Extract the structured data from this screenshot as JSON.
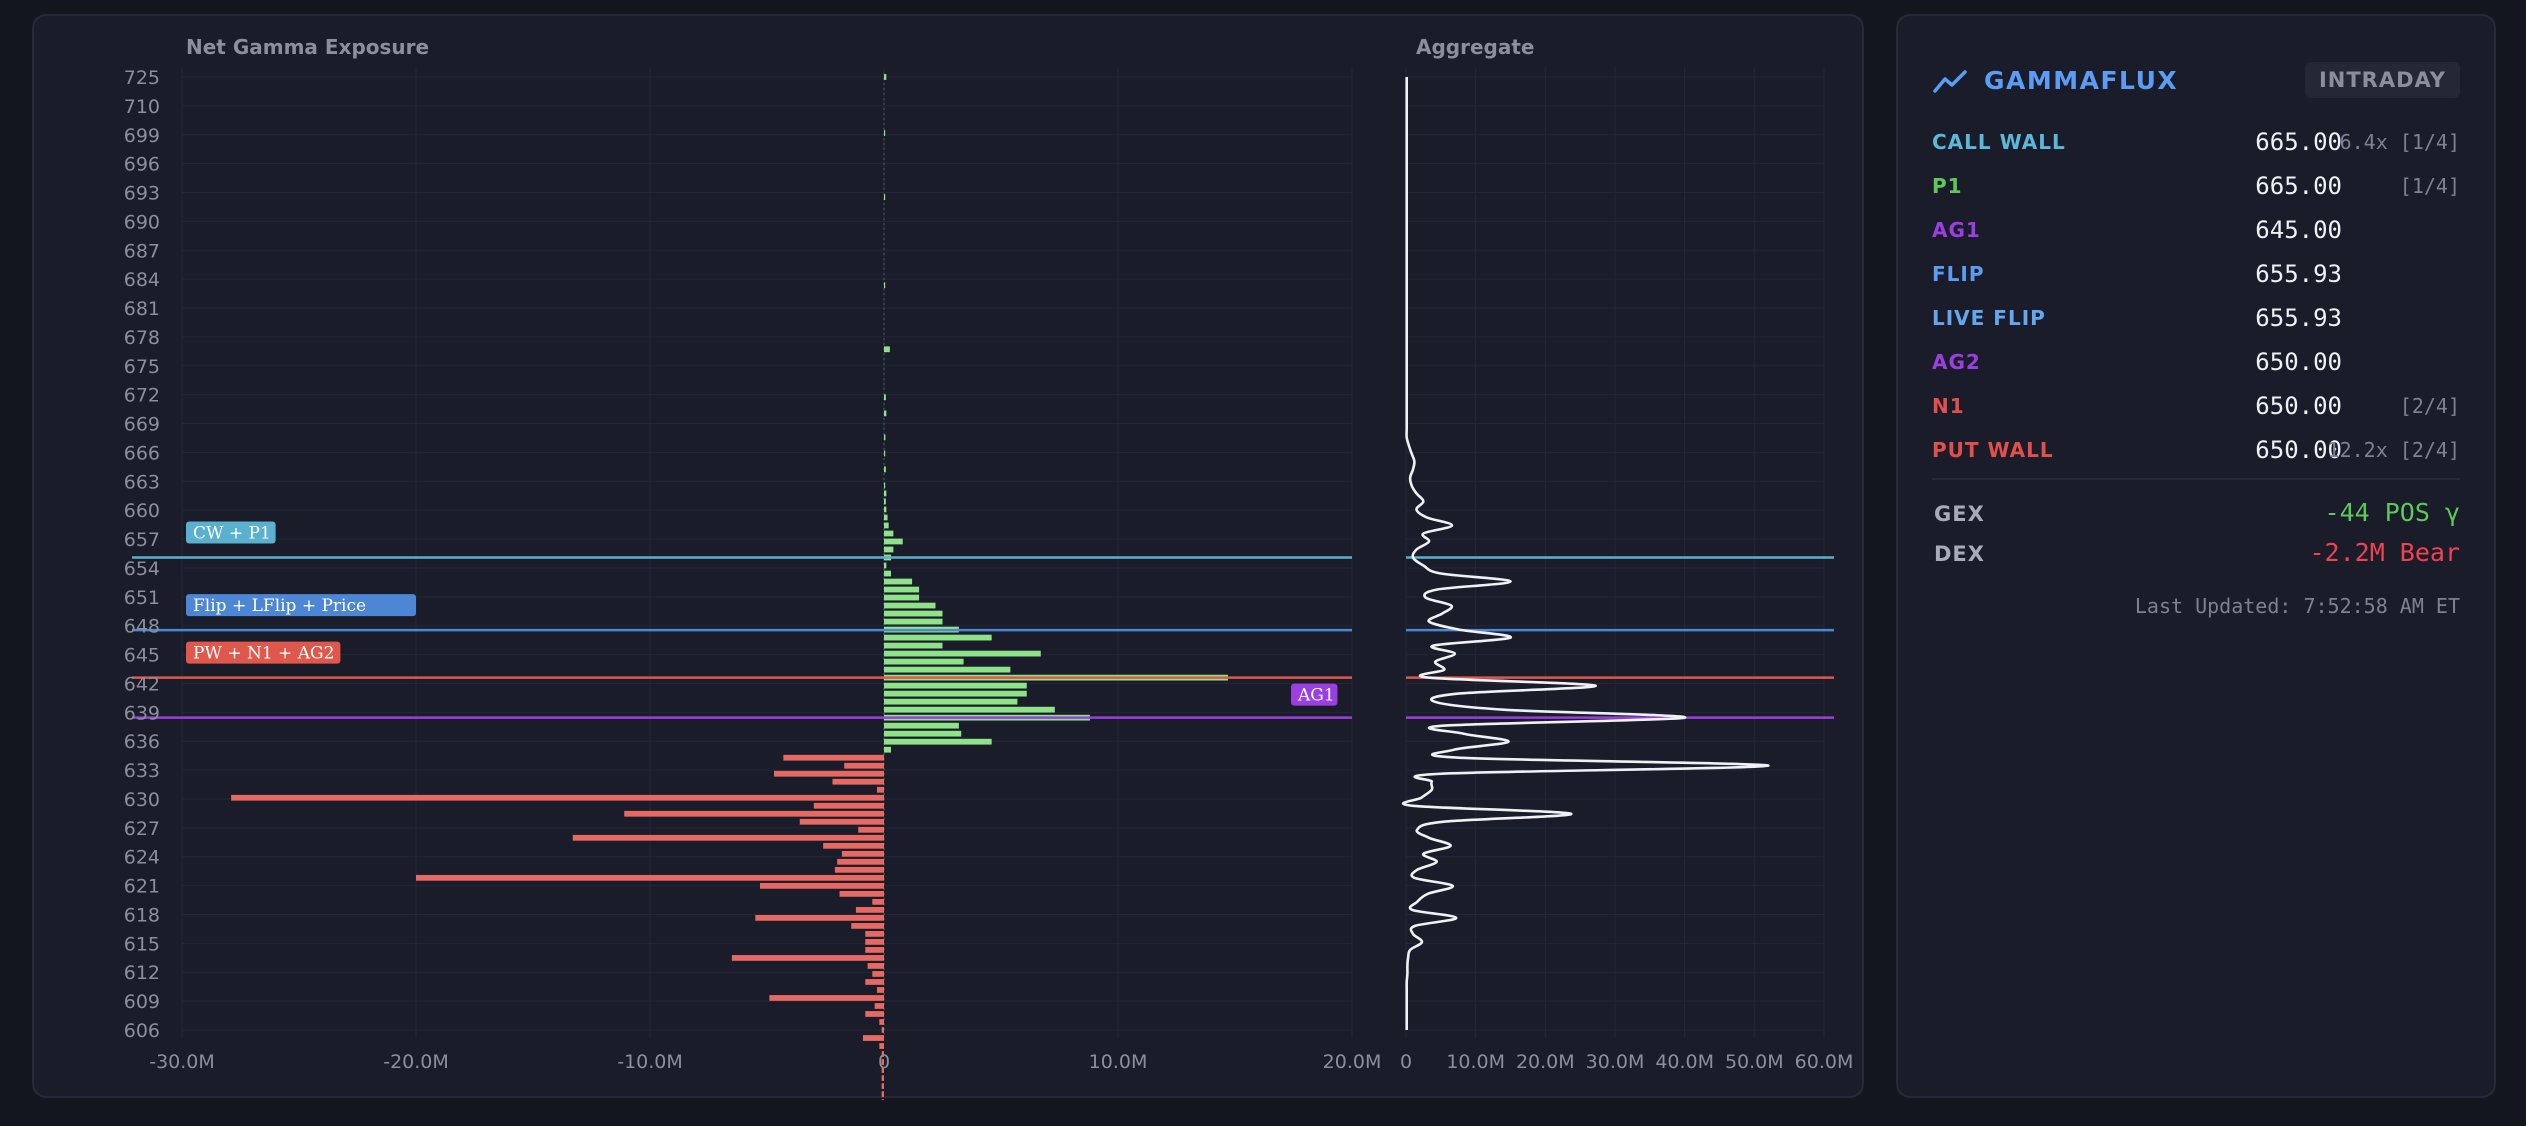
{
  "chart_data": {
    "type": "bar",
    "orientation": "horizontal",
    "left_panel_title": "Net Gamma Exposure",
    "right_panel_title": "Aggregate",
    "y_tick_labels": [
      "725",
      "710",
      "699",
      "696",
      "693",
      "690",
      "687",
      "684",
      "681",
      "678",
      "675",
      "672",
      "669",
      "666",
      "663",
      "660",
      "657",
      "654",
      "651",
      "648",
      "645",
      "642",
      "639",
      "636",
      "633",
      "630",
      "627",
      "624",
      "621",
      "618",
      "615",
      "612",
      "609",
      "606"
    ],
    "x_ticks_left": [
      "-30.0M",
      "-20.0M",
      "-10.0M",
      "0",
      "10.0M",
      "20.0M"
    ],
    "x_ticks_right": [
      "0",
      "10.0M",
      "20.0M",
      "30.0M",
      "40.0M",
      "50.0M",
      "60.0M"
    ],
    "xlim_left": [
      -30000000,
      20000000
    ],
    "xlim_right": [
      0,
      60000000
    ],
    "strikes": [
      725,
      724,
      723,
      722,
      721,
      720,
      719,
      718,
      717,
      716,
      715,
      714,
      713,
      712,
      711,
      710,
      709,
      708,
      707,
      706,
      705,
      704,
      703,
      702,
      701,
      700,
      699,
      698,
      697,
      696,
      695,
      694,
      693,
      692,
      691,
      690,
      689,
      688,
      687,
      686,
      685,
      684,
      683,
      682,
      681,
      680,
      679,
      678,
      677,
      676,
      675,
      674,
      673,
      672,
      671,
      670,
      669,
      668,
      667,
      666,
      665,
      664,
      663,
      662,
      661,
      660,
      659,
      658,
      657,
      656,
      655,
      654,
      653,
      652,
      651,
      650,
      649,
      648,
      647,
      646,
      645,
      644,
      643,
      642,
      641,
      640,
      639,
      638,
      637,
      636,
      635,
      634,
      633,
      632,
      631,
      630,
      629,
      628,
      627,
      626,
      625,
      624,
      623,
      622,
      621,
      620,
      619,
      618,
      617,
      616,
      615,
      614,
      613,
      612,
      611,
      610,
      609,
      608,
      607,
      606
    ],
    "net_gamma": [
      100000,
      0,
      0,
      0,
      0,
      0,
      0,
      50000,
      0,
      0,
      0,
      0,
      0,
      0,
      0,
      50000,
      0,
      0,
      0,
      0,
      0,
      0,
      0,
      0,
      0,
      0,
      50000,
      0,
      0,
      0,
      0,
      0,
      0,
      0,
      250000,
      0,
      0,
      0,
      0,
      0,
      80000,
      0,
      100000,
      0,
      0,
      60000,
      0,
      50000,
      0,
      80000,
      0,
      50000,
      100000,
      80000,
      100000,
      150000,
      200000,
      400000,
      800000,
      400000,
      300000,
      100000,
      300000,
      1200000,
      1500000,
      1500000,
      2200000,
      2500000,
      2500000,
      3200000,
      4600000,
      2500000,
      6700000,
      3400000,
      5400000,
      14700000,
      6100000,
      6100000,
      5700000,
      7300000,
      8800000,
      3200000,
      3300000,
      4600000,
      300000,
      -4300000,
      -1700000,
      -4700000,
      -2200000,
      -300000,
      -27900000,
      -3000000,
      -11100000,
      -3600000,
      -1100000,
      -13300000,
      -2600000,
      -1800000,
      -2000000,
      -2100000,
      -20000000,
      -5300000,
      -1900000,
      -500000,
      -1200000,
      -5500000,
      -1400000,
      -800000,
      -800000,
      -800000,
      -6500000,
      -700000,
      -500000,
      -800000,
      -300000,
      -4900000,
      -400000,
      -800000,
      -200000,
      -100000,
      -900000,
      -200000,
      -100000,
      -100000,
      -100000,
      -100000,
      -100000,
      -100000,
      -100000,
      -100000,
      -100000,
      -100000,
      -300000,
      -100000,
      -100000
    ],
    "aggregate_gamma": [
      100000,
      100000,
      100000,
      100000,
      100000,
      100000,
      100000,
      100000,
      100000,
      100000,
      100000,
      100000,
      100000,
      100000,
      100000,
      100000,
      100000,
      100000,
      100000,
      100000,
      100000,
      100000,
      100000,
      100000,
      100000,
      100000,
      100000,
      100000,
      100000,
      100000,
      100000,
      100000,
      100000,
      100000,
      100000,
      100000,
      100000,
      100000,
      100000,
      100000,
      100000,
      100000,
      100000,
      100000,
      100000,
      100000,
      400000,
      800000,
      1200000,
      1000000,
      600000,
      800000,
      1500000,
      2500000,
      1500000,
      3000000,
      6600000,
      2500000,
      3300000,
      1500000,
      1000000,
      2500000,
      5000000,
      15000000,
      4500000,
      2800000,
      6500000,
      5200000,
      3300000,
      7600000,
      15000000,
      3900000,
      7000000,
      4200000,
      5500000,
      3200000,
      27200000,
      7500000,
      4100000,
      14000000,
      40000000,
      5300000,
      8300000,
      14700000,
      6900000,
      7600000,
      52000000,
      5200000,
      3700000,
      3700000,
      2200000,
      1000000,
      23700000,
      5300000,
      1600000,
      3300000,
      6400000,
      2500000,
      4400000,
      1600000,
      1200000,
      6700000,
      3100000,
      1600000,
      900000,
      7200000,
      1300000,
      1000000,
      2300000,
      600000,
      300000,
      200000,
      200000,
      100000,
      100000,
      100000,
      100000,
      100000,
      100000,
      100000
    ],
    "levels": [
      {
        "label": "CW + P1",
        "strike": 665,
        "color": "#5ab0cf"
      },
      {
        "label": "Flip + LFlip + Price",
        "strike": 655.93,
        "color": "#4e86d6"
      },
      {
        "label": "PW + N1 + AG2",
        "strike": 650,
        "color": "#e0584c"
      },
      {
        "label": "AG1",
        "strike": 645,
        "color": "#9a3fe0"
      }
    ],
    "colors": {
      "positive": "#8fe28a",
      "negative": "#e66a63",
      "aggregate_line": "#f0f1f5"
    },
    "grid": true
  },
  "sidebar": {
    "brand": "GAMMAFLUX",
    "mode": "INTRADAY",
    "accent": "#5b9cf5",
    "levels": [
      {
        "name": "CALL WALL",
        "value": "665.00",
        "note": "6.4x [1/4]",
        "color": "#5ab8d8"
      },
      {
        "name": "P1",
        "value": "665.00",
        "note": "[1/4]",
        "color": "#5ec85b"
      },
      {
        "name": "AG1",
        "value": "645.00",
        "note": "",
        "color": "#9a3fe0"
      },
      {
        "name": "FLIP",
        "value": "655.93",
        "note": "",
        "color": "#5b9cf5"
      },
      {
        "name": "LIVE FLIP",
        "value": "655.93",
        "note": "",
        "color": "#63a8ef"
      },
      {
        "name": "AG2",
        "value": "650.00",
        "note": "",
        "color": "#9a3fe0"
      },
      {
        "name": "N1",
        "value": "650.00",
        "note": "[2/4]",
        "color": "#e0504c"
      },
      {
        "name": "PUT WALL",
        "value": "650.00",
        "note": "12.2x [2/4]",
        "color": "#e0504c"
      }
    ],
    "gex": {
      "label": "GEX",
      "value": "-44 POS γ",
      "color": "#5ec85b"
    },
    "dex": {
      "label": "DEX",
      "value": "-2.2M Bear",
      "color": "#f0424f"
    },
    "last_updated": "Last Updated: 7:52:58 AM ET"
  }
}
